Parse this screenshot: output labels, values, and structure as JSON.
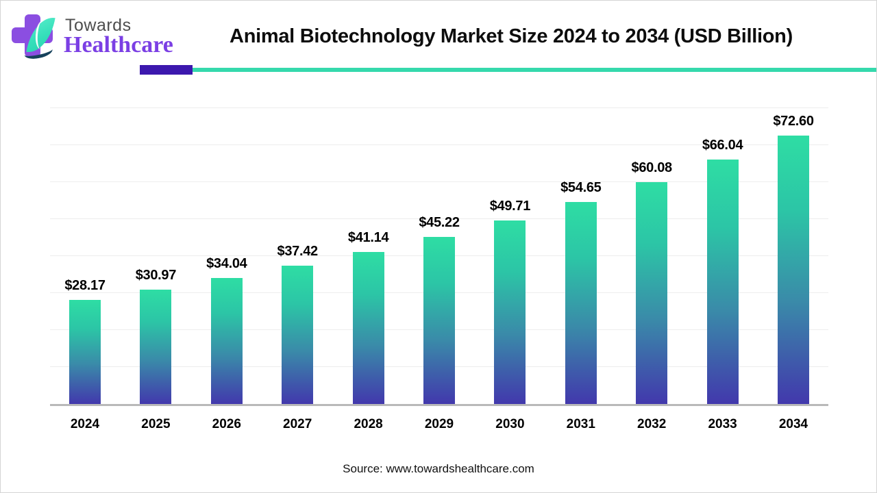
{
  "brand": {
    "name_top": "Towards",
    "name_bottom": "Healthcare"
  },
  "header": {
    "title": "Animal Biotechnology Market Size 2024 to 2034 (USD Billion)"
  },
  "footer": {
    "source": "Source: www.towardshealthcare.com"
  },
  "colors": {
    "brand_purple": "#7b3fe4",
    "cross_purple": "#8b4ee1",
    "leaf_mint": "#35dfba",
    "rule_purple": "#3c18ae",
    "rule_teal": "#35d9ac",
    "bar_gradient_top": "#2edda4",
    "bar_gradient_bottom": "#4238ac",
    "axis_line": "#b9b9b9",
    "gridline": "#ededed"
  },
  "chart_data": {
    "type": "bar",
    "title": "Animal Biotechnology Market Size 2024 to 2034 (USD Billion)",
    "categories": [
      "2024",
      "2025",
      "2026",
      "2027",
      "2028",
      "2029",
      "2030",
      "2031",
      "2032",
      "2033",
      "2034"
    ],
    "values": [
      28.17,
      30.97,
      34.04,
      37.42,
      41.14,
      45.22,
      49.71,
      54.65,
      60.08,
      66.04,
      72.6
    ],
    "value_labels": [
      "$28.17",
      "$30.97",
      "$34.04",
      "$37.42",
      "$41.14",
      "$45.22",
      "$49.71",
      "$54.65",
      "$60.08",
      "$66.04",
      "$72.60"
    ],
    "xlabel": "",
    "ylabel": "",
    "ylim": [
      0,
      80
    ],
    "gridline_step": 10,
    "grid": true,
    "legend": false,
    "unit": "USD Billion"
  }
}
